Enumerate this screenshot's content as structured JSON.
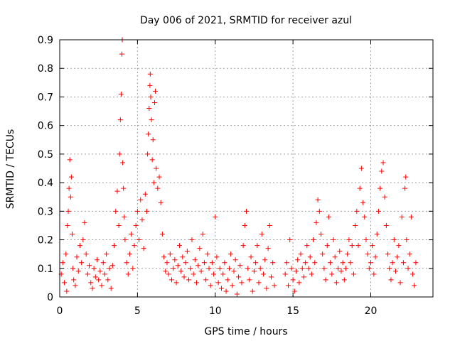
{
  "chart_data": {
    "type": "scatter",
    "title": "Day 006 of 2021, SRMTID for receiver azul",
    "xlabel": "GPS time / hours",
    "ylabel": "SRMTID / TECUs",
    "xlim": [
      0,
      24
    ],
    "ylim": [
      0,
      0.9
    ],
    "x_ticks": [
      0,
      5,
      10,
      15,
      20
    ],
    "x_tick_labels": [
      "0",
      "5",
      "10",
      "15",
      "20"
    ],
    "y_ticks": [
      0,
      0.1,
      0.2,
      0.3,
      0.4,
      0.5,
      0.6,
      0.7,
      0.8,
      0.9
    ],
    "y_tick_labels": [
      "0",
      "0.1",
      "0.2",
      "0.3",
      "0.4",
      "0.5",
      "0.6",
      "0.7",
      "0.8",
      "0.9"
    ],
    "grid": true,
    "marker": "+",
    "color": "#ff0000",
    "series": [
      {
        "name": "SRMTID",
        "points": [
          [
            0.1,
            0.08
          ],
          [
            0.2,
            0.12
          ],
          [
            0.3,
            0.05
          ],
          [
            0.4,
            0.15
          ],
          [
            0.45,
            0.02
          ],
          [
            0.5,
            0.25
          ],
          [
            0.55,
            0.3
          ],
          [
            0.6,
            0.38
          ],
          [
            0.65,
            0.48
          ],
          [
            0.7,
            0.35
          ],
          [
            0.75,
            0.42
          ],
          [
            0.8,
            0.22
          ],
          [
            0.85,
            0.1
          ],
          [
            0.9,
            0.06
          ],
          [
            1.0,
            0.04
          ],
          [
            1.1,
            0.14
          ],
          [
            1.2,
            0.09
          ],
          [
            1.3,
            0.18
          ],
          [
            1.4,
            0.12
          ],
          [
            1.5,
            0.2
          ],
          [
            1.6,
            0.26
          ],
          [
            1.7,
            0.15
          ],
          [
            1.8,
            0.08
          ],
          [
            1.9,
            0.11
          ],
          [
            2.0,
            0.05
          ],
          [
            2.1,
            0.03
          ],
          [
            2.2,
            0.1
          ],
          [
            2.3,
            0.07
          ],
          [
            2.4,
            0.13
          ],
          [
            2.5,
            0.06
          ],
          [
            2.6,
            0.09
          ],
          [
            2.7,
            0.04
          ],
          [
            2.8,
            0.12
          ],
          [
            2.9,
            0.08
          ],
          [
            3.0,
            0.15
          ],
          [
            3.1,
            0.06
          ],
          [
            3.2,
            0.1
          ],
          [
            3.3,
            0.03
          ],
          [
            3.4,
            0.11
          ],
          [
            3.5,
            0.18
          ],
          [
            3.6,
            0.3
          ],
          [
            3.7,
            0.37
          ],
          [
            3.8,
            0.25
          ],
          [
            3.85,
            0.5
          ],
          [
            3.9,
            0.62
          ],
          [
            3.95,
            0.71
          ],
          [
            4.0,
            0.85
          ],
          [
            4.02,
            0.9
          ],
          [
            4.05,
            0.47
          ],
          [
            4.1,
            0.38
          ],
          [
            4.15,
            0.28
          ],
          [
            4.2,
            0.2
          ],
          [
            4.3,
            0.12
          ],
          [
            4.4,
            0.08
          ],
          [
            4.5,
            0.15
          ],
          [
            4.6,
            0.22
          ],
          [
            4.7,
            0.1
          ],
          [
            4.8,
            0.18
          ],
          [
            4.9,
            0.25
          ],
          [
            5.0,
            0.3
          ],
          [
            5.1,
            0.2
          ],
          [
            5.2,
            0.34
          ],
          [
            5.3,
            0.27
          ],
          [
            5.4,
            0.17
          ],
          [
            5.5,
            0.36
          ],
          [
            5.6,
            0.3
          ],
          [
            5.65,
            0.5
          ],
          [
            5.7,
            0.57
          ],
          [
            5.75,
            0.66
          ],
          [
            5.8,
            0.74
          ],
          [
            5.82,
            0.78
          ],
          [
            5.85,
            0.7
          ],
          [
            5.9,
            0.62
          ],
          [
            5.95,
            0.48
          ],
          [
            6.0,
            0.55
          ],
          [
            6.05,
            0.4
          ],
          [
            6.1,
            0.68
          ],
          [
            6.15,
            0.72
          ],
          [
            6.2,
            0.45
          ],
          [
            6.3,
            0.38
          ],
          [
            6.4,
            0.42
          ],
          [
            6.5,
            0.33
          ],
          [
            6.6,
            0.22
          ],
          [
            6.7,
            0.14
          ],
          [
            6.8,
            0.09
          ],
          [
            6.9,
            0.12
          ],
          [
            7.0,
            0.08
          ],
          [
            7.1,
            0.15
          ],
          [
            7.2,
            0.06
          ],
          [
            7.3,
            0.1
          ],
          [
            7.4,
            0.13
          ],
          [
            7.5,
            0.05
          ],
          [
            7.6,
            0.11
          ],
          [
            7.7,
            0.18
          ],
          [
            7.8,
            0.09
          ],
          [
            7.9,
            0.14
          ],
          [
            8.0,
            0.07
          ],
          [
            8.1,
            0.12
          ],
          [
            8.2,
            0.16
          ],
          [
            8.3,
            0.06
          ],
          [
            8.4,
            0.1
          ],
          [
            8.5,
            0.2
          ],
          [
            8.6,
            0.08
          ],
          [
            8.7,
            0.13
          ],
          [
            8.8,
            0.05
          ],
          [
            8.9,
            0.11
          ],
          [
            9.0,
            0.17
          ],
          [
            9.1,
            0.09
          ],
          [
            9.2,
            0.22
          ],
          [
            9.3,
            0.12
          ],
          [
            9.4,
            0.06
          ],
          [
            9.5,
            0.15
          ],
          [
            9.6,
            0.1
          ],
          [
            9.7,
            0.04
          ],
          [
            9.8,
            0.12
          ],
          [
            9.9,
            0.08
          ],
          [
            10.0,
            0.28
          ],
          [
            10.1,
            0.14
          ],
          [
            10.2,
            0.05
          ],
          [
            10.3,
            0.1
          ],
          [
            10.4,
            0.03
          ],
          [
            10.5,
            0.08
          ],
          [
            10.6,
            0.12
          ],
          [
            10.7,
            0.02
          ],
          [
            10.8,
            0.06
          ],
          [
            10.9,
            0.1
          ],
          [
            11.0,
            0.15
          ],
          [
            11.1,
            0.04
          ],
          [
            11.2,
            0.09
          ],
          [
            11.3,
            0.13
          ],
          [
            11.4,
            0.01
          ],
          [
            11.5,
            0.07
          ],
          [
            11.6,
            0.11
          ],
          [
            11.7,
            0.05
          ],
          [
            11.8,
            0.18
          ],
          [
            11.9,
            0.25
          ],
          [
            12.0,
            0.3
          ],
          [
            12.1,
            0.1
          ],
          [
            12.2,
            0.06
          ],
          [
            12.3,
            0.14
          ],
          [
            12.4,
            0.02
          ],
          [
            12.5,
            0.09
          ],
          [
            12.6,
            0.12
          ],
          [
            12.7,
            0.18
          ],
          [
            12.8,
            0.05
          ],
          [
            12.9,
            0.1
          ],
          [
            13.0,
            0.22
          ],
          [
            13.1,
            0.08
          ],
          [
            13.2,
            0.13
          ],
          [
            13.3,
            0.03
          ],
          [
            13.4,
            0.17
          ],
          [
            13.5,
            0.25
          ],
          [
            13.6,
            0.07
          ],
          [
            13.7,
            0.12
          ],
          [
            13.8,
            0.04
          ],
          [
            14.5,
            0.08
          ],
          [
            14.6,
            0.12
          ],
          [
            14.7,
            0.04
          ],
          [
            14.8,
            0.2
          ],
          [
            14.9,
            0.1
          ],
          [
            15.0,
            0.06
          ],
          [
            15.1,
            0.02
          ],
          [
            15.2,
            0.09
          ],
          [
            15.3,
            0.13
          ],
          [
            15.4,
            0.05
          ],
          [
            15.5,
            0.15
          ],
          [
            15.6,
            0.1
          ],
          [
            15.7,
            0.07
          ],
          [
            15.8,
            0.12
          ],
          [
            15.9,
            0.18
          ],
          [
            16.0,
            0.1
          ],
          [
            16.1,
            0.14
          ],
          [
            16.2,
            0.08
          ],
          [
            16.3,
            0.2
          ],
          [
            16.4,
            0.12
          ],
          [
            16.5,
            0.26
          ],
          [
            16.6,
            0.34
          ],
          [
            16.7,
            0.3
          ],
          [
            16.8,
            0.22
          ],
          [
            16.9,
            0.15
          ],
          [
            17.0,
            0.1
          ],
          [
            17.1,
            0.06
          ],
          [
            17.2,
            0.18
          ],
          [
            17.3,
            0.28
          ],
          [
            17.4,
            0.12
          ],
          [
            17.5,
            0.08
          ],
          [
            17.6,
            0.2
          ],
          [
            17.7,
            0.14
          ],
          [
            17.8,
            0.05
          ],
          [
            17.9,
            0.1
          ],
          [
            18.0,
            0.16
          ],
          [
            18.1,
            0.09
          ],
          [
            18.2,
            0.12
          ],
          [
            18.3,
            0.06
          ],
          [
            18.4,
            0.1
          ],
          [
            18.5,
            0.15
          ],
          [
            18.6,
            0.2
          ],
          [
            18.7,
            0.12
          ],
          [
            18.8,
            0.18
          ],
          [
            18.9,
            0.08
          ],
          [
            19.0,
            0.25
          ],
          [
            19.1,
            0.3
          ],
          [
            19.2,
            0.18
          ],
          [
            19.3,
            0.38
          ],
          [
            19.4,
            0.45
          ],
          [
            19.5,
            0.33
          ],
          [
            19.6,
            0.28
          ],
          [
            19.7,
            0.2
          ],
          [
            19.8,
            0.15
          ],
          [
            19.9,
            0.1
          ],
          [
            20.0,
            0.12
          ],
          [
            20.1,
            0.18
          ],
          [
            20.2,
            0.08
          ],
          [
            20.3,
            0.14
          ],
          [
            20.4,
            0.22
          ],
          [
            20.5,
            0.3
          ],
          [
            20.6,
            0.38
          ],
          [
            20.7,
            0.44
          ],
          [
            20.8,
            0.47
          ],
          [
            20.9,
            0.35
          ],
          [
            21.0,
            0.25
          ],
          [
            21.1,
            0.15
          ],
          [
            21.2,
            0.1
          ],
          [
            21.3,
            0.06
          ],
          [
            21.4,
            0.12
          ],
          [
            21.5,
            0.2
          ],
          [
            21.6,
            0.09
          ],
          [
            21.7,
            0.14
          ],
          [
            21.8,
            0.18
          ],
          [
            21.9,
            0.05
          ],
          [
            22.0,
            0.28
          ],
          [
            22.1,
            0.12
          ],
          [
            22.2,
            0.38
          ],
          [
            22.25,
            0.42
          ],
          [
            22.3,
            0.2
          ],
          [
            22.4,
            0.1
          ],
          [
            22.5,
            0.15
          ],
          [
            22.6,
            0.28
          ],
          [
            22.7,
            0.08
          ],
          [
            22.8,
            0.04
          ],
          [
            22.9,
            0.12
          ]
        ]
      }
    ]
  }
}
